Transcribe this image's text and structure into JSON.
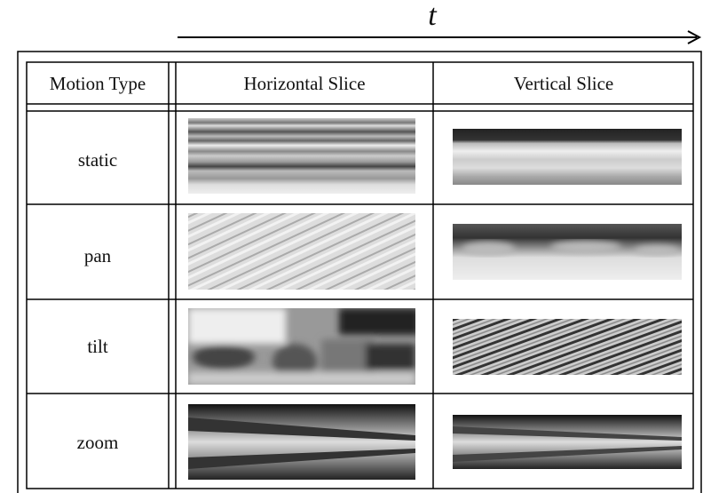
{
  "axis_label": "t",
  "table": {
    "header": [
      "Motion Type",
      "Horizontal Slice",
      "Vertical Slice"
    ],
    "rows": [
      [
        "static"
      ],
      [
        "pan"
      ],
      [
        "tilt"
      ],
      [
        "zoom"
      ]
    ]
  }
}
